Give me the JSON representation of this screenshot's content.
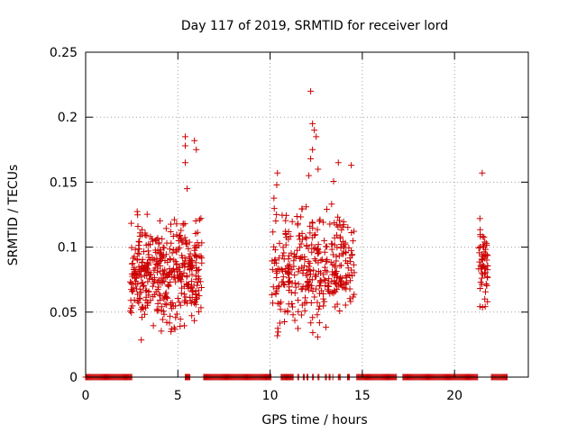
{
  "chart_data": {
    "type": "scatter",
    "title": "Day 117 of 2019, SRMTID for receiver lord",
    "xlabel": "GPS time / hours",
    "ylabel": "SRMTID / TECUs",
    "xlim": [
      0,
      24
    ],
    "ylim": [
      0,
      0.25
    ],
    "xticks": [
      0,
      5,
      10,
      15,
      20
    ],
    "xtick_labels": [
      "0",
      "5",
      "10",
      "15",
      "20"
    ],
    "yticks": [
      0,
      0.05,
      0.1,
      0.15,
      0.2,
      0.25
    ],
    "ytick_labels": [
      "0",
      "0.05",
      "0.1",
      "0.15",
      "0.2",
      "0.25"
    ],
    "grid": true,
    "marker": "+",
    "color": "#cc0000",
    "clusters": [
      {
        "x_start": 2.4,
        "x_end": 6.3,
        "y_min": 0.028,
        "y_max": 0.145,
        "y_center": 0.08,
        "count": 420
      },
      {
        "x_start": 10.1,
        "x_end": 14.6,
        "y_min": 0.03,
        "y_max": 0.165,
        "y_center": 0.085,
        "count": 360
      },
      {
        "x_start": 21.3,
        "x_end": 21.8,
        "y_min": 0.045,
        "y_max": 0.145,
        "y_center": 0.085,
        "count": 60
      }
    ],
    "outliers": [
      {
        "x": 5.4,
        "y": 0.185
      },
      {
        "x": 5.4,
        "y": 0.178
      },
      {
        "x": 5.9,
        "y": 0.182
      },
      {
        "x": 6.0,
        "y": 0.175
      },
      {
        "x": 5.4,
        "y": 0.165
      },
      {
        "x": 5.5,
        "y": 0.145
      },
      {
        "x": 12.2,
        "y": 0.22
      },
      {
        "x": 12.3,
        "y": 0.195
      },
      {
        "x": 12.4,
        "y": 0.19
      },
      {
        "x": 12.5,
        "y": 0.185
      },
      {
        "x": 12.3,
        "y": 0.175
      },
      {
        "x": 12.2,
        "y": 0.168
      },
      {
        "x": 12.6,
        "y": 0.16
      },
      {
        "x": 13.7,
        "y": 0.165
      },
      {
        "x": 14.4,
        "y": 0.163
      },
      {
        "x": 21.5,
        "y": 0.157
      },
      {
        "x": 10.4,
        "y": 0.157
      },
      {
        "x": 12.1,
        "y": 0.155
      }
    ],
    "zero_segments": [
      [
        0.0,
        2.5
      ],
      [
        5.4,
        5.65
      ],
      [
        6.4,
        10.1
      ],
      [
        10.6,
        11.3
      ],
      [
        11.5,
        11.6
      ],
      [
        11.8,
        11.9
      ],
      [
        12.0,
        12.1
      ],
      [
        12.3,
        12.4
      ],
      [
        12.6,
        12.7
      ],
      [
        13.0,
        13.05
      ],
      [
        13.2,
        13.25
      ],
      [
        13.4,
        13.45
      ],
      [
        13.7,
        13.8
      ],
      [
        14.2,
        14.3
      ],
      [
        14.7,
        16.9
      ],
      [
        17.2,
        21.3
      ],
      [
        22.0,
        22.9
      ]
    ]
  }
}
